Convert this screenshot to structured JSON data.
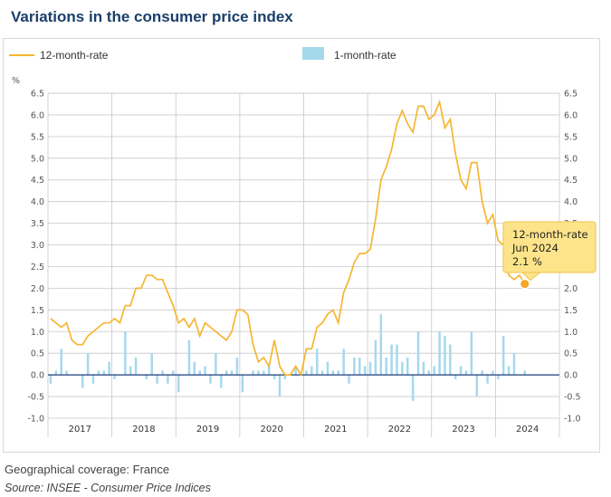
{
  "page": {
    "title": "Variations in the consumer price index",
    "geo": "Geographical coverage: France",
    "source": "Source: INSEE - Consumer Price Indices"
  },
  "colors": {
    "line": "#f6b632",
    "bar": "#a6d8ec",
    "grid": "#c8c8c8",
    "zero": "#1f3e7a",
    "tooltip_bg": "#fde48a",
    "tooltip_border": "#efc24a",
    "title": "#1b3f6b"
  },
  "chart_data": {
    "type": "bar+line",
    "ylabel": "%",
    "ylim": [
      -1.0,
      6.5
    ],
    "yticks": [
      "6.5",
      "6.0",
      "5.5",
      "5.0",
      "4.5",
      "4.0",
      "3.5",
      "3.0",
      "2.5",
      "2.0",
      "1.5",
      "1.0",
      "0.5",
      "0.0",
      "-0.5",
      "-1.0"
    ],
    "years": [
      "2017",
      "2018",
      "2019",
      "2020",
      "2021",
      "2022",
      "2023",
      "2024"
    ],
    "start": "2017-01",
    "series": [
      {
        "name": "12-month-rate",
        "type": "line",
        "values": [
          1.3,
          1.2,
          1.1,
          1.2,
          0.8,
          0.7,
          0.7,
          0.9,
          1.0,
          1.1,
          1.2,
          1.2,
          1.3,
          1.2,
          1.6,
          1.6,
          2.0,
          2.0,
          2.3,
          2.3,
          2.2,
          2.2,
          1.9,
          1.6,
          1.2,
          1.3,
          1.1,
          1.3,
          0.9,
          1.2,
          1.1,
          1.0,
          0.9,
          0.8,
          1.0,
          1.5,
          1.5,
          1.4,
          0.7,
          0.3,
          0.4,
          0.2,
          0.8,
          0.2,
          0.0,
          0.0,
          0.2,
          0.0,
          0.6,
          0.6,
          1.1,
          1.2,
          1.4,
          1.5,
          1.2,
          1.9,
          2.2,
          2.6,
          2.8,
          2.8,
          2.9,
          3.6,
          4.5,
          4.8,
          5.2,
          5.8,
          6.1,
          5.8,
          5.6,
          6.2,
          6.2,
          5.9,
          6.0,
          6.3,
          5.7,
          5.9,
          5.1,
          4.5,
          4.3,
          4.9,
          4.9,
          4.0,
          3.5,
          3.7,
          3.1,
          3.0,
          2.3,
          2.2,
          2.3,
          2.1
        ]
      },
      {
        "name": "1-month-rate",
        "type": "bar",
        "values": [
          -0.2,
          0.1,
          0.6,
          0.1,
          0.0,
          0.0,
          -0.3,
          0.5,
          -0.2,
          0.1,
          0.1,
          0.3,
          -0.1,
          0.0,
          1.0,
          0.2,
          0.4,
          0.0,
          -0.1,
          0.5,
          -0.2,
          0.1,
          -0.2,
          0.1,
          -0.4,
          0.0,
          0.8,
          0.3,
          0.1,
          0.2,
          -0.2,
          0.5,
          -0.3,
          0.1,
          0.1,
          0.4,
          -0.4,
          0.0,
          0.1,
          0.1,
          0.1,
          0.2,
          -0.1,
          -0.5,
          -0.1,
          0.0,
          0.2,
          0.0,
          0.1,
          0.2,
          0.6,
          0.1,
          0.3,
          0.1,
          0.1,
          0.6,
          -0.2,
          0.4,
          0.4,
          0.2,
          0.3,
          0.8,
          1.4,
          0.4,
          0.7,
          0.7,
          0.3,
          0.4,
          -0.6,
          1.0,
          0.3,
          0.1,
          0.2,
          1.0,
          0.9,
          0.7,
          -0.1,
          0.2,
          0.1,
          1.0,
          -0.5,
          0.1,
          -0.2,
          0.1,
          -0.1,
          0.9,
          0.2,
          0.5,
          0.0,
          0.1
        ]
      }
    ],
    "tooltip": {
      "series": "12-month-rate",
      "date": "Jun 2024",
      "value": "2.1 %"
    }
  }
}
